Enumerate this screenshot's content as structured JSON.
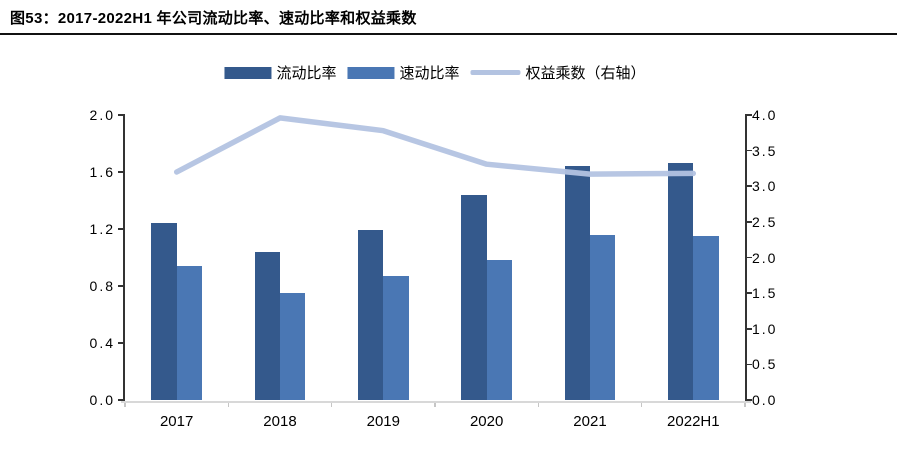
{
  "title": "图53：2017-2022H1 年公司流动比率、速动比率和权益乘数",
  "colors": {
    "current_ratio": "#34598C",
    "quick_ratio": "#4A77B4",
    "equity_multiplier": "#B3C3E1",
    "axis": "#333333",
    "x_axis_line": "#D8D8D8",
    "title_rule": "#111111"
  },
  "legend": [
    {
      "key": "current-ratio",
      "label": "流动比率",
      "swatch": "bar",
      "color": "#34598C"
    },
    {
      "key": "quick-ratio",
      "label": "速动比率",
      "swatch": "bar",
      "color": "#4A77B4"
    },
    {
      "key": "equity-multiplier",
      "label": "权益乘数（右轴）",
      "swatch": "line",
      "color": "#B3C3E1"
    }
  ],
  "chart_data": {
    "type": "combo-bar-line",
    "title": "图53：2017-2022H1 年公司流动比率、速动比率和权益乘数",
    "categories": [
      "2017",
      "2018",
      "2019",
      "2020",
      "2021",
      "2022H1"
    ],
    "series": [
      {
        "name": "流动比率",
        "key": "current-ratio",
        "type": "bar",
        "axis": "left",
        "color": "#34598C",
        "values": [
          1.24,
          1.04,
          1.19,
          1.44,
          1.64,
          1.66
        ]
      },
      {
        "name": "速动比率",
        "key": "quick-ratio",
        "type": "bar",
        "axis": "left",
        "color": "#4A77B4",
        "values": [
          0.94,
          0.75,
          0.87,
          0.98,
          1.16,
          1.15
        ]
      },
      {
        "name": "权益乘数（右轴）",
        "key": "equity-multiplier",
        "type": "line",
        "axis": "right",
        "color": "#B3C3E1",
        "values": [
          3.2,
          3.96,
          3.78,
          3.31,
          3.17,
          3.18
        ]
      }
    ],
    "left_axis": {
      "min": 0,
      "max": 2.0,
      "step": 0.4,
      "ticks": [
        "2.0",
        "1.6",
        "1.2",
        "0.8",
        "0.4",
        "0.0"
      ]
    },
    "right_axis": {
      "min": 0,
      "max": 4.0,
      "step": 0.5,
      "ticks": [
        "4.0",
        "3.5",
        "3.0",
        "2.5",
        "2.0",
        "1.5",
        "1.0",
        "0.5",
        "0.0"
      ]
    },
    "grid": false,
    "legend_position": "top"
  }
}
